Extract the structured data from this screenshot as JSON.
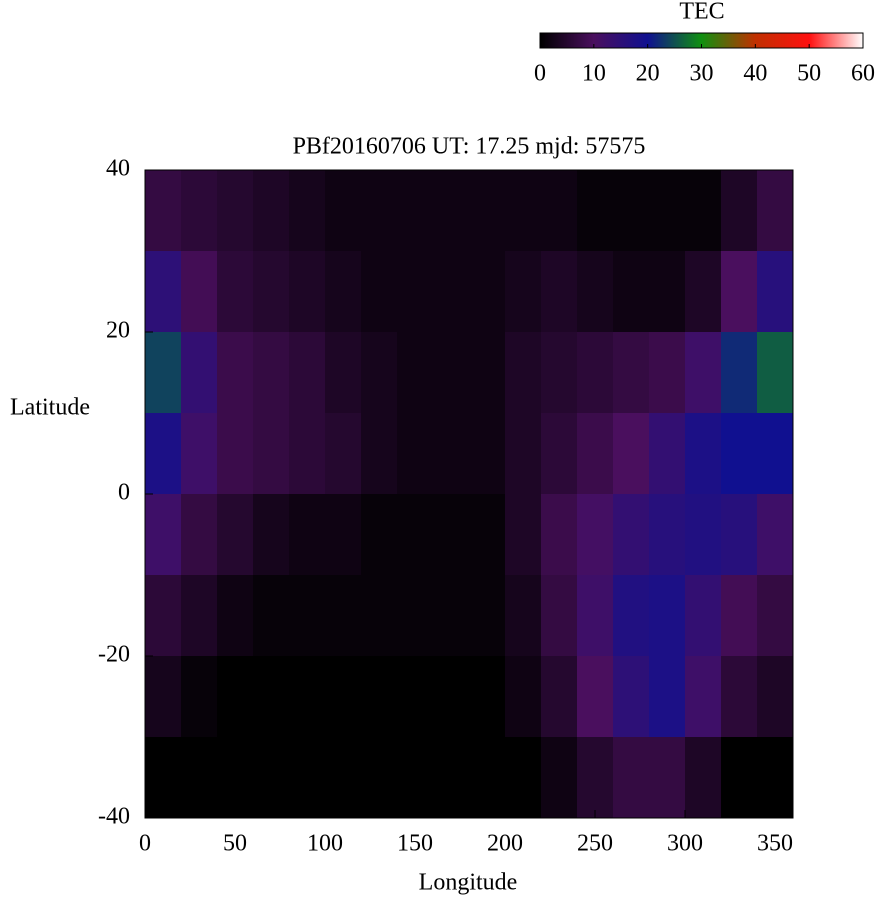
{
  "chart_data": {
    "type": "heatmap",
    "title": "PBf20160706  UT: 17.25  mjd: 57575",
    "xlabel": "Longitude",
    "ylabel": "Latitude",
    "colorbar_label": "TEC",
    "xlim": [
      0,
      360
    ],
    "xticks": [
      0,
      50,
      100,
      150,
      200,
      250,
      300,
      350
    ],
    "ylim": [
      -40,
      40
    ],
    "yticks": [
      -40,
      -20,
      0,
      20,
      40
    ],
    "cblim": [
      0,
      60
    ],
    "cbticks": [
      0,
      10,
      20,
      30,
      40,
      50,
      60
    ],
    "colormap": [
      "#000000",
      "#4a0f5e",
      "#101090",
      "#109010",
      "#c03000",
      "#ff1010",
      "#ffffff"
    ],
    "x": [
      10,
      30,
      50,
      70,
      90,
      110,
      130,
      150,
      170,
      190,
      210,
      230,
      250,
      270,
      290,
      310,
      330,
      350
    ],
    "y": [
      35,
      25,
      15,
      5,
      -5,
      -15,
      -25,
      -35
    ],
    "z": [
      [
        7,
        6,
        5,
        4,
        3,
        2,
        2,
        2,
        2,
        2,
        2,
        2,
        1,
        1,
        1,
        1,
        4,
        7
      ],
      [
        15,
        9,
        6,
        5,
        4,
        3,
        2,
        2,
        2,
        2,
        3,
        4,
        3,
        2,
        2,
        4,
        10,
        16
      ],
      [
        24,
        14,
        8,
        7,
        6,
        4,
        3,
        2,
        2,
        2,
        4,
        5,
        6,
        7,
        8,
        12,
        22,
        26
      ],
      [
        18,
        12,
        8,
        7,
        6,
        5,
        3,
        2,
        2,
        2,
        4,
        6,
        8,
        10,
        14,
        18,
        20,
        20
      ],
      [
        12,
        7,
        5,
        3,
        2,
        2,
        1,
        1,
        1,
        1,
        4,
        8,
        11,
        14,
        16,
        17,
        16,
        12
      ],
      [
        6,
        4,
        2,
        1,
        1,
        1,
        1,
        1,
        1,
        1,
        3,
        7,
        12,
        17,
        18,
        14,
        9,
        7
      ],
      [
        3,
        1,
        0,
        0,
        0,
        0,
        0,
        0,
        0,
        0,
        2,
        5,
        10,
        15,
        18,
        12,
        6,
        4
      ],
      [
        0,
        0,
        0,
        0,
        0,
        0,
        0,
        0,
        0,
        0,
        0,
        2,
        5,
        7,
        7,
        4,
        0,
        0
      ]
    ]
  }
}
